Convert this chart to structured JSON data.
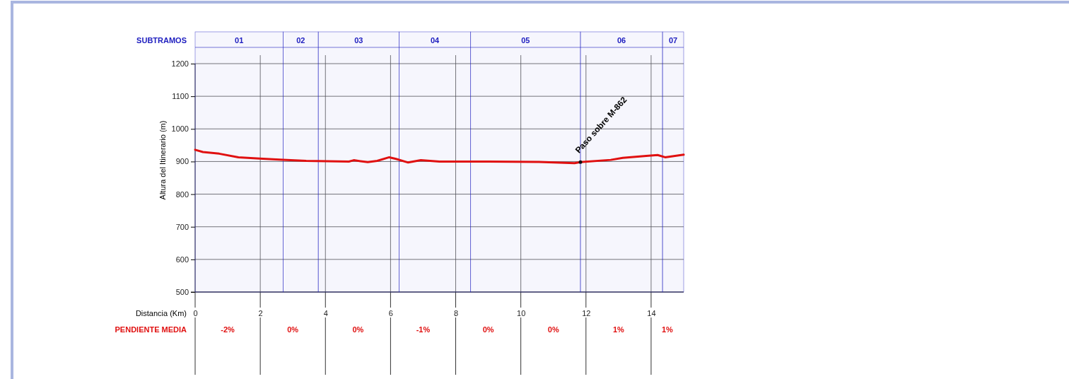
{
  "chart_data": {
    "type": "line",
    "ylabel": "Altura del Itinerario (m)",
    "xlabel": "Distancia (Km)",
    "x": [
      0,
      0.24,
      0.74,
      1.33,
      1.98,
      2.7,
      3.41,
      4.72,
      4.87,
      5.3,
      5.59,
      5.96,
      6.17,
      6.54,
      6.93,
      7.5,
      9.0,
      10.5,
      11.65,
      11.83,
      12.76,
      13.13,
      13.85,
      14.2,
      14.43,
      15.0
    ],
    "series": [
      {
        "color": "#e01010",
        "values": [
          936,
          929,
          924,
          913,
          909,
          905,
          902,
          900,
          904,
          898,
          902,
          913,
          908,
          897,
          904,
          900,
          900,
          899,
          895,
          898,
          905,
          911,
          917,
          920,
          913,
          921
        ]
      }
    ],
    "xlim": [
      0,
      15
    ],
    "xticks": [
      0,
      2,
      4,
      6,
      8,
      10,
      12,
      14
    ],
    "ylim": [
      500,
      1200
    ],
    "yticks": [
      500,
      600,
      700,
      800,
      900,
      1000,
      1100,
      1200
    ],
    "grid": true,
    "marker": "none",
    "line_style": "solid",
    "bands": [
      {
        "axis": "x",
        "from": 0,
        "to": 2.7,
        "label": "01",
        "color": "#2020c0"
      },
      {
        "axis": "x",
        "from": 2.7,
        "to": 3.78,
        "label": "02",
        "color": "#2020c0"
      },
      {
        "axis": "x",
        "from": 3.78,
        "to": 6.26,
        "label": "03",
        "color": "#2020c0"
      },
      {
        "axis": "x",
        "from": 6.26,
        "to": 8.46,
        "label": "04",
        "color": "#2020c0"
      },
      {
        "axis": "x",
        "from": 8.46,
        "to": 11.83,
        "label": "05",
        "color": "#2020c0"
      },
      {
        "axis": "x",
        "from": 11.83,
        "to": 14.35,
        "label": "06",
        "color": "#2020c0"
      },
      {
        "axis": "x",
        "from": 14.35,
        "to": 15,
        "label": "07",
        "color": "#2020c0"
      }
    ],
    "annotations": [
      "SUBTRAMOS",
      "PENDIENTE MEDIA",
      {
        "text": "Paso sobre M-862",
        "x": 11.83,
        "y": 898
      },
      "-2%",
      "0%",
      "0%",
      "-1%",
      "0%",
      "0%",
      "1%",
      "1%"
    ]
  }
}
